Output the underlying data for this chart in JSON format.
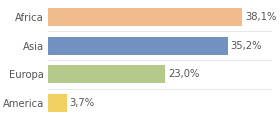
{
  "categories": [
    "Africa",
    "Asia",
    "Europa",
    "America"
  ],
  "values": [
    38.1,
    35.2,
    23.0,
    3.7
  ],
  "labels": [
    "38,1%",
    "35,2%",
    "23,0%",
    "3,7%"
  ],
  "bar_colors": [
    "#f0bc8c",
    "#7191c0",
    "#b5c98a",
    "#f0d060"
  ],
  "background_color": "#ffffff",
  "xlim": [
    0,
    44
  ],
  "bar_height": 0.62,
  "label_fontsize": 7.2,
  "tick_fontsize": 7.2
}
